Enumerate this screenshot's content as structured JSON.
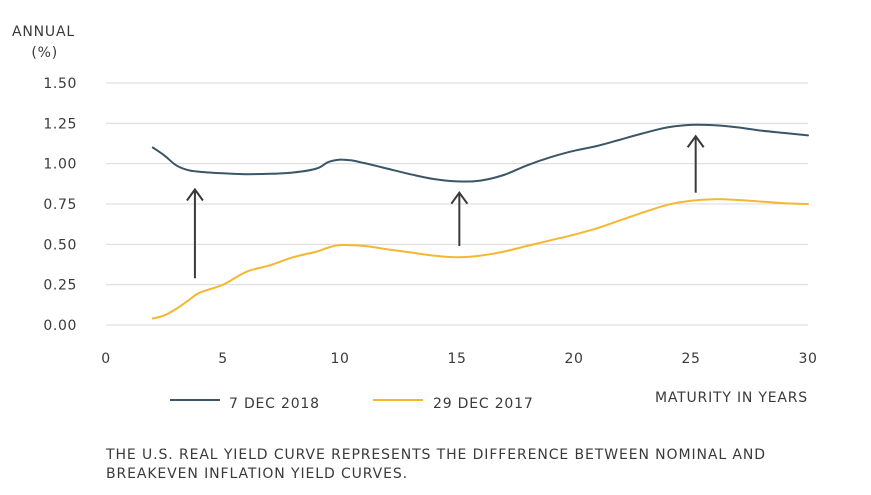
{
  "chart_data": {
    "type": "line",
    "ylabel_line1": "ANNUAL",
    "ylabel_line2": "(%)",
    "xlabel": "MATURITY IN YEARS",
    "xlim": [
      0,
      30
    ],
    "ylim": [
      0,
      1.5
    ],
    "x_ticks": [
      "0",
      "5",
      "10",
      "15",
      "20",
      "25",
      "30"
    ],
    "y_ticks": [
      "0.00",
      "0.25",
      "0.50",
      "0.75",
      "1.00",
      "1.25",
      "1.50"
    ],
    "grid": true,
    "legend_position": "bottom",
    "series": [
      {
        "name": "7 DEC 2018",
        "color": "#3b5666",
        "x": [
          2,
          2.5,
          3,
          3.5,
          4,
          5,
          6,
          7,
          8,
          9,
          9.5,
          10,
          10.5,
          11,
          12,
          13,
          14,
          15,
          16,
          17,
          18,
          19,
          20,
          21,
          22,
          23,
          24,
          25,
          26,
          27,
          28,
          29,
          30
        ],
        "y": [
          1.1,
          1.05,
          0.99,
          0.96,
          0.95,
          0.94,
          0.935,
          0.937,
          0.945,
          0.97,
          1.01,
          1.025,
          1.02,
          1.005,
          0.97,
          0.935,
          0.905,
          0.89,
          0.895,
          0.93,
          0.99,
          1.04,
          1.08,
          1.11,
          1.15,
          1.19,
          1.225,
          1.24,
          1.238,
          1.225,
          1.205,
          1.19,
          1.175
        ]
      },
      {
        "name": "29 DEC 2017",
        "color": "#f5b731",
        "x": [
          2,
          2.5,
          3,
          3.5,
          4,
          5,
          6,
          7,
          8,
          9,
          9.5,
          10,
          11,
          12,
          13,
          14,
          15,
          16,
          17,
          18,
          19,
          20,
          21,
          22,
          23,
          24,
          25,
          26,
          27,
          28,
          29,
          30
        ],
        "y": [
          0.04,
          0.06,
          0.1,
          0.15,
          0.2,
          0.25,
          0.33,
          0.37,
          0.42,
          0.455,
          0.48,
          0.495,
          0.49,
          0.47,
          0.45,
          0.43,
          0.42,
          0.43,
          0.455,
          0.49,
          0.525,
          0.56,
          0.6,
          0.65,
          0.7,
          0.745,
          0.77,
          0.78,
          0.775,
          0.765,
          0.755,
          0.75
        ]
      }
    ],
    "arrows": [
      {
        "x": 3.8,
        "y_from": 0.29,
        "y_to": 0.84
      },
      {
        "x": 15.1,
        "y_from": 0.49,
        "y_to": 0.82
      },
      {
        "x": 25.2,
        "y_from": 0.82,
        "y_to": 1.17
      }
    ]
  },
  "footnote": "THE U.S. REAL YIELD CURVE REPRESENTS THE DIFFERENCE BETWEEN NOMINAL AND BREAKEVEN INFLATION YIELD CURVES."
}
